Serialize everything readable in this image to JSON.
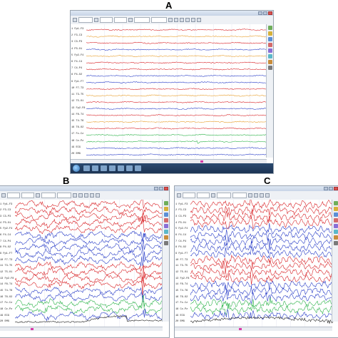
{
  "figure": {
    "panel_labels": [
      "A",
      "B",
      "C"
    ]
  },
  "screens": [
    {
      "id": "A",
      "channels": [
        "1 Fp1-F3",
        "2 F3-C3",
        "3 C3-P3",
        "4 P3-O1",
        "5 Fp2-F4",
        "6 F4-C4",
        "7 C4-P4",
        "8 P4-O2",
        "9 Fp1-F7",
        "10 F7-T3",
        "11 T3-T5",
        "12 T5-O1",
        "13 Fp2-F8",
        "14 F8-T4",
        "15 T4-T6",
        "16 T6-O2",
        "17 Fz-Cz",
        "18 Cz-Pz",
        "19 ECG",
        "20 EMG"
      ],
      "trace_colors": [
        "#d9262a",
        "#e8a030",
        "#d9262a",
        "#2b3fc8",
        "#e8a030",
        "#d9262a",
        "#d9262a",
        "#2b3fc8",
        "#2b3fc8",
        "#d9262a",
        "#e8a030",
        "#d9262a",
        "#2b3fc8",
        "#d9262a",
        "#e8a030",
        "#d9262a",
        "#2db34a",
        "#2db34a",
        "#2b3fc8",
        "#2b3fc8"
      ],
      "activity": "background"
    },
    {
      "id": "B",
      "channels": [
        "1 Fp1-F3",
        "2 F3-C3",
        "3 C3-P3",
        "4 P3-O1",
        "5 Fp2-F4",
        "6 F4-C4",
        "7 C4-P4",
        "8 P4-O2",
        "9 Fp1-F7",
        "10 F7-T3",
        "11 T3-T5",
        "12 T5-O1",
        "13 Fp2-F8",
        "14 F8-T4",
        "15 T4-T6",
        "16 T6-O2",
        "17 Fz-Cz",
        "18 Cz-Pz",
        "19 ECG",
        "20 EMG"
      ],
      "trace_colors": [
        "#d9262a",
        "#d9262a",
        "#d9262a",
        "#d9262a",
        "#d9262a",
        "#2b3fc8",
        "#2b3fc8",
        "#2b3fc8",
        "#2b3fc8",
        "#2b3fc8",
        "#d9262a",
        "#d9262a",
        "#d9262a",
        "#d9262a",
        "#2b3fc8",
        "#2b3fc8",
        "#2db34a",
        "#2db34a",
        "#2b3fc8",
        "#222222"
      ],
      "activity": "seizure-onset"
    },
    {
      "id": "C",
      "channels": [
        "1 Fp1-F3",
        "2 F3-C3",
        "3 C3-P3",
        "4 P3-O1",
        "5 Fp2-F4",
        "6 F4-C4",
        "7 C4-P4",
        "8 P4-O2",
        "9 Fp1-F7",
        "10 F7-T3",
        "11 T3-T5",
        "12 T5-O1",
        "13 Fp2-F8",
        "14 F8-T4",
        "15 T4-T6",
        "16 T6-O2",
        "17 Fz-Cz",
        "18 Cz-Pz",
        "19 ECG",
        "20 EMG"
      ],
      "trace_colors": [
        "#d9262a",
        "#d9262a",
        "#d9262a",
        "#d9262a",
        "#2b3fc8",
        "#2b3fc8",
        "#2b3fc8",
        "#2b3fc8",
        "#2b3fc8",
        "#d9262a",
        "#d9262a",
        "#d9262a",
        "#d9262a",
        "#2b3fc8",
        "#2b3fc8",
        "#2b3fc8",
        "#2db34a",
        "#2db34a",
        "#2b3fc8",
        "#222222"
      ],
      "activity": "seizure-evolution"
    }
  ]
}
